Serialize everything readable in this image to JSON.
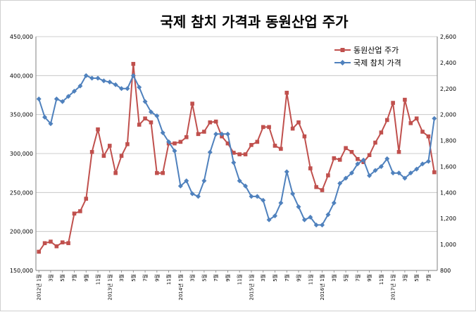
{
  "chart_data": {
    "type": "line",
    "title": "국제 참치 가격과 동원산업 주가",
    "legend_position": "top-right",
    "grid": true,
    "y_left": {
      "min": 150000,
      "max": 450000,
      "ticks": [
        "150,000",
        "200,000",
        "250,000",
        "300,000",
        "350,000",
        "400,000",
        "450,000"
      ]
    },
    "y_right": {
      "min": 800,
      "max": 2600,
      "ticks": [
        "800",
        "1,000",
        "1,200",
        "1,400",
        "1,600",
        "1,800",
        "2,000",
        "2,200",
        "2,400",
        "2,600"
      ]
    },
    "x_labels": [
      "2012년 1월",
      "3월",
      "5월",
      "7월",
      "9월",
      "11월",
      "2013년 1월",
      "3월",
      "5월",
      "7월",
      "9월",
      "11월",
      "2014년 1월",
      "3월",
      "5월",
      "7월",
      "9월",
      "11월",
      "2015년 1월",
      "3월",
      "5월",
      "7월",
      "9월",
      "11월",
      "2016년 1월",
      "3월",
      "5월",
      "7월",
      "9월",
      "11월",
      "2017년 1월",
      "3월",
      "5월",
      "7월"
    ],
    "series": [
      {
        "name": "동원산업 주가",
        "axis": "left",
        "color": "#c0504d",
        "marker": "square",
        "values": [
          174000,
          185000,
          187000,
          181000,
          186000,
          185000,
          223000,
          226000,
          242000,
          302000,
          331000,
          297000,
          310000,
          275000,
          297000,
          312000,
          415000,
          337000,
          345000,
          340000,
          275000,
          275000,
          313000,
          313000,
          315000,
          321000,
          364000,
          325000,
          328000,
          340000,
          341000,
          322000,
          313000,
          301000,
          299000,
          299000,
          311000,
          315000,
          334000,
          334000,
          310000,
          306000,
          378000,
          332000,
          340000,
          322000,
          281000,
          257000,
          253000,
          272000,
          294000,
          292000,
          307000,
          302000,
          293000,
          289000,
          298000,
          314000,
          327000,
          343000,
          365000,
          302000,
          369000,
          339000,
          345000,
          328000,
          322000,
          276000
        ]
      },
      {
        "name": "국제 참치 가격",
        "axis": "right",
        "color": "#4f81bd",
        "marker": "diamond",
        "values": [
          2120,
          1980,
          1930,
          2120,
          2100,
          2140,
          2180,
          2220,
          2300,
          2280,
          2280,
          2260,
          2250,
          2230,
          2200,
          2200,
          2300,
          2210,
          2100,
          2020,
          1990,
          1860,
          1790,
          1720,
          1450,
          1490,
          1390,
          1370,
          1490,
          1710,
          1850,
          1850,
          1850,
          1630,
          1490,
          1450,
          1370,
          1370,
          1340,
          1190,
          1220,
          1320,
          1560,
          1390,
          1290,
          1190,
          1210,
          1150,
          1150,
          1230,
          1320,
          1470,
          1510,
          1550,
          1620,
          1650,
          1530,
          1570,
          1600,
          1660,
          1550,
          1550,
          1510,
          1550,
          1580,
          1620,
          1640,
          1970
        ]
      }
    ]
  }
}
